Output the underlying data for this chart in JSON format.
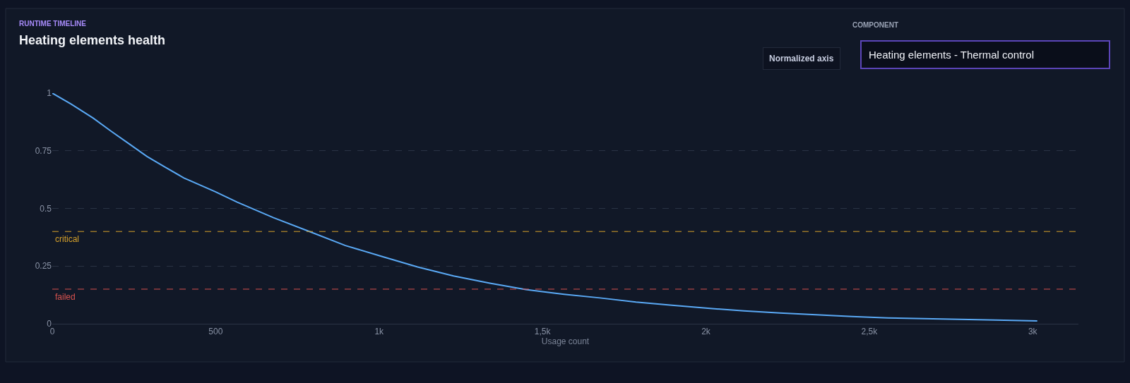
{
  "chart_data": {
    "type": "line",
    "title": "Heating elements health",
    "subtitle": "RUNTIME TIMELINE",
    "xlabel": "Usage count",
    "annotations": [
      "COMPONENT",
      "Normalized axis",
      "Heating elements - Thermal control"
    ],
    "series": [
      {
        "color": "#5aa9f5",
        "x": [
          0,
          58,
          125,
          180,
          235,
          290,
          345,
          403,
          498,
          566,
          677,
          787,
          897,
          1008,
          1118,
          1228,
          1339,
          1449,
          1566,
          1676,
          1786,
          1896,
          2006,
          2117,
          2227,
          2337,
          2447,
          2557,
          2667,
          2777,
          2887,
          3014
        ],
        "values": [
          1,
          0.952,
          0.892,
          0.835,
          0.78,
          0.725,
          0.679,
          0.632,
          0.573,
          0.527,
          0.46,
          0.4,
          0.339,
          0.292,
          0.246,
          0.207,
          0.176,
          0.148,
          0.128,
          0.112,
          0.094,
          0.08,
          0.067,
          0.056,
          0.047,
          0.039,
          0.031,
          0.025,
          0.022,
          0.019,
          0.016,
          0.012
        ]
      }
    ],
    "ref_lines": [
      {
        "axis": "y",
        "value": 0.4,
        "label": "critical",
        "color": "#d9a32b",
        "line_style": "dashed"
      },
      {
        "axis": "y",
        "value": 0.15,
        "label": "failed",
        "color": "#d9534f",
        "line_style": "dashed"
      }
    ],
    "xlim": [
      0,
      3140
    ],
    "ylim": [
      0,
      1
    ],
    "xticks": [
      0,
      500,
      {
        "value": 1000,
        "label": "1k"
      },
      {
        "value": 1500,
        "label": "1,5k"
      },
      {
        "value": 2000,
        "label": "2k"
      },
      {
        "value": 2500,
        "label": "2,5k"
      },
      {
        "value": 3000,
        "label": "3k"
      }
    ],
    "yticks": [
      0,
      0.25,
      0.5,
      0.75,
      1
    ],
    "grid": "y",
    "marker": "none",
    "line_style": "solid"
  }
}
